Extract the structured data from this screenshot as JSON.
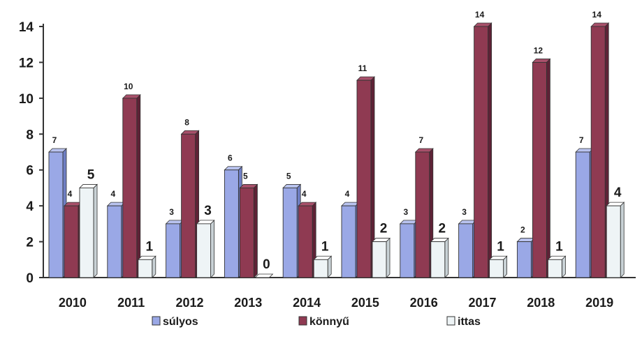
{
  "chart_data": {
    "type": "bar",
    "categories": [
      "2010",
      "2011",
      "2012",
      "2013",
      "2014",
      "2015",
      "2016",
      "2017",
      "2018",
      "2019"
    ],
    "series": [
      {
        "name": "súlyos",
        "values": [
          7,
          4,
          3,
          6,
          5,
          4,
          3,
          3,
          2,
          7
        ],
        "color": "#9aa8e6"
      },
      {
        "name": "könnyű",
        "values": [
          4,
          10,
          8,
          5,
          4,
          11,
          7,
          14,
          12,
          14
        ],
        "color": "#8f3a52"
      },
      {
        "name": "ittas",
        "values": [
          5,
          1,
          3,
          0,
          1,
          2,
          2,
          1,
          1,
          4
        ],
        "color": "#eef4f6"
      }
    ],
    "yticks": [
      0,
      2,
      4,
      6,
      8,
      10,
      12,
      14
    ],
    "ylim": [
      0,
      14
    ],
    "grid": false,
    "legend": "bottom",
    "title": "",
    "xlabel": "",
    "ylabel": ""
  }
}
